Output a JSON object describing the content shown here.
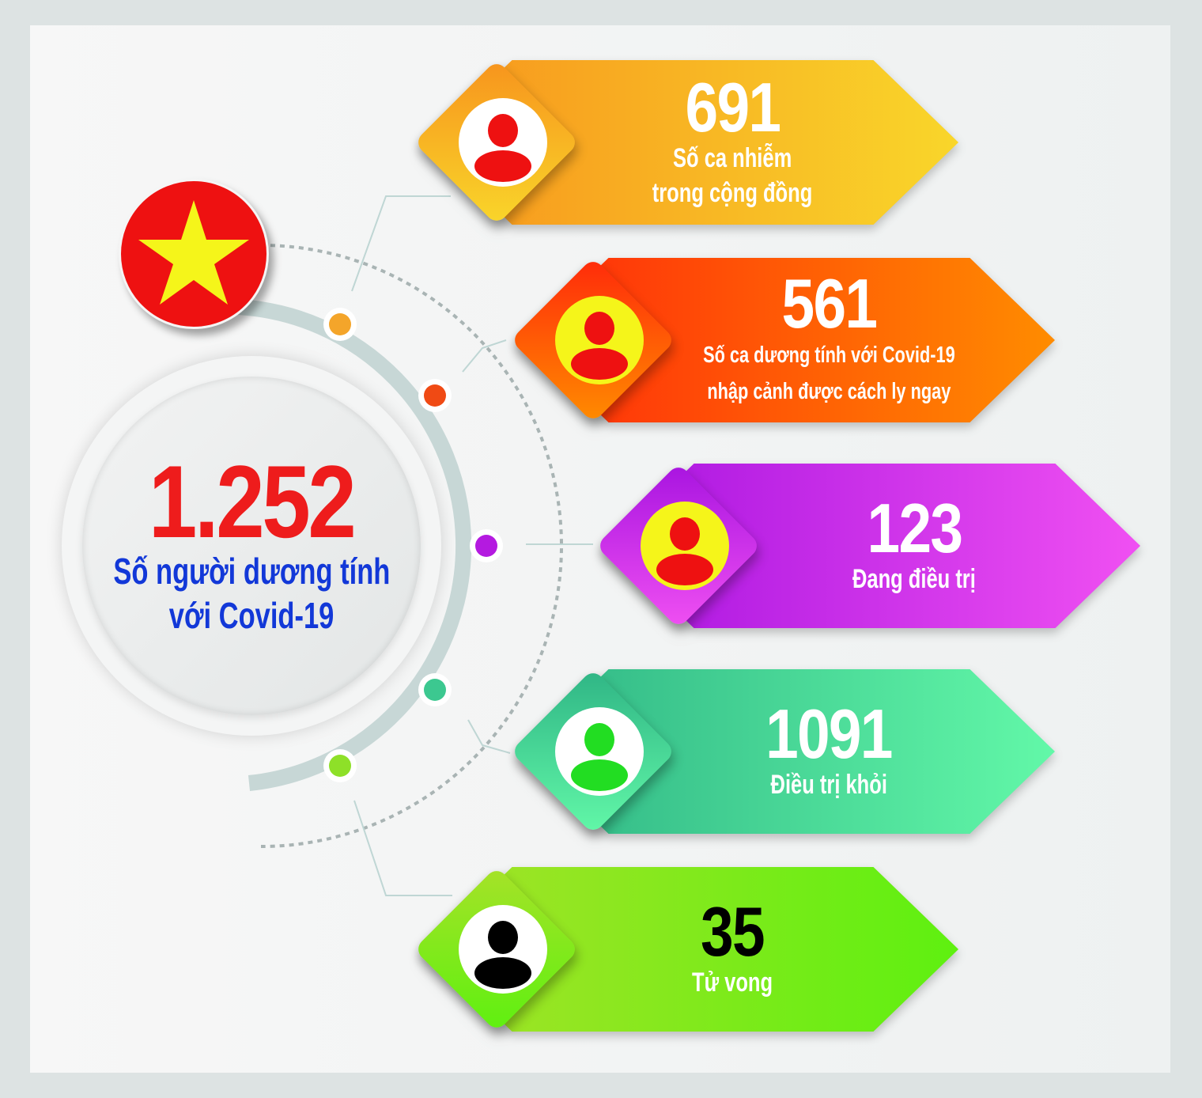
{
  "total": {
    "value": "1.252",
    "label_line1": "Số người dương tính",
    "label_line2": "với Covid-19",
    "value_color": "#ee1c1c",
    "label_color": "#1238d8"
  },
  "flag": {
    "icon": "vietnam-flag-star",
    "field_color": "#ee1111",
    "star_color": "#f5f51a"
  },
  "stats": [
    {
      "value": "691",
      "label_line1": "Số ca nhiễm",
      "label_line2": "trong cộng đồng",
      "colors": [
        "#f7941d",
        "#f9d62a"
      ],
      "avatar_color": "#ee1111",
      "avatar_bg": "#ffffff"
    },
    {
      "value": "561",
      "label_line1": "Số ca dương tính với Covid-19",
      "label_line2": "nhập cảnh được cách ly ngay",
      "colors": [
        "#ff2a0a",
        "#ff8c00"
      ],
      "avatar_color": "#ee1111",
      "avatar_bg": "#f5f51a"
    },
    {
      "value": "123",
      "label_line1": "Đang điều trị",
      "label_line2": "",
      "colors": [
        "#a814e0",
        "#f050f2"
      ],
      "avatar_color": "#ee1111",
      "avatar_bg": "#f5f51a"
    },
    {
      "value": "1091",
      "label_line1": "Điều trị khỏi",
      "label_line2": "",
      "colors": [
        "#2fb585",
        "#62f8a8"
      ],
      "avatar_color": "#22dd22",
      "avatar_bg": "#ffffff"
    },
    {
      "value": "35",
      "label_line1": "Tử vong",
      "label_line2": "",
      "colors": [
        "#a6e228",
        "#5ef010"
      ],
      "avatar_color": "#000000",
      "avatar_bg": "#ffffff",
      "value_color": "#000000"
    }
  ]
}
